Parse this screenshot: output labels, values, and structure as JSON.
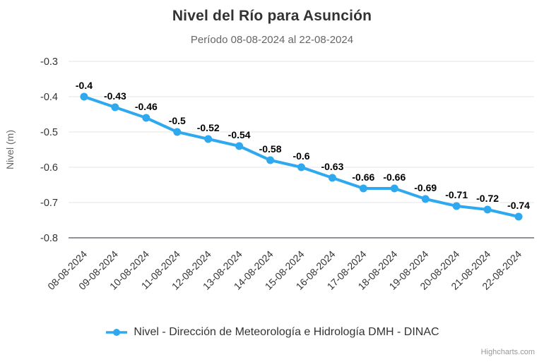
{
  "chart": {
    "credit": "Highcharts.com",
    "colors": {
      "series": "#2ea8ef",
      "title": "#333333",
      "subtitle": "#666666",
      "grid": "#e6e6e6",
      "axis_line": "#6b6f76",
      "tick_label": "#333333",
      "axis_title": "#666666",
      "data_label": "#000000",
      "legend_text": "#333333",
      "credit": "#999999",
      "background": "#ffffff"
    }
  },
  "chart_data": {
    "type": "line",
    "title": "Nivel del Río para Asunción",
    "subtitle": "Período 08-08-2024 al 22-08-2024",
    "xlabel": "",
    "ylabel": "Nivel (m)",
    "ylim": [
      -0.8,
      -0.3
    ],
    "yticks": [
      -0.8,
      -0.7,
      -0.6,
      -0.5,
      -0.4,
      -0.3
    ],
    "grid": true,
    "legend_position": "bottom",
    "x_label_rotation": -45,
    "data_labels": true,
    "categories": [
      "08-08-2024",
      "09-08-2024",
      "10-08-2024",
      "11-08-2024",
      "12-08-2024",
      "13-08-2024",
      "14-08-2024",
      "15-08-2024",
      "16-08-2024",
      "17-08-2024",
      "18-08-2024",
      "19-08-2024",
      "20-08-2024",
      "21-08-2024",
      "22-08-2024"
    ],
    "series": [
      {
        "name": "Nivel - Dirección de Meteorología e Hidrología DMH - DINAC",
        "values": [
          -0.4,
          -0.43,
          -0.46,
          -0.5,
          -0.52,
          -0.54,
          -0.58,
          -0.6,
          -0.63,
          -0.66,
          -0.66,
          -0.69,
          -0.71,
          -0.72,
          -0.74
        ]
      }
    ]
  }
}
